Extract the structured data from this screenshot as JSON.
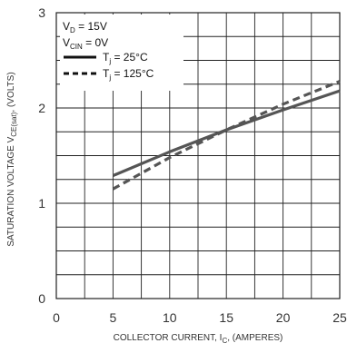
{
  "chart_data": {
    "type": "line",
    "xlabel": {
      "main": "COLLECTOR CURRENT, I",
      "sub": "C",
      "unit": ", (AMPERES)"
    },
    "ylabel": {
      "main": "SATURATION VOLTAGE V",
      "sub": "CE(sat)",
      "unit": ", (VOLTS)"
    },
    "xlim": [
      0,
      25
    ],
    "ylim": [
      0,
      3
    ],
    "xticks": [
      {
        "value": 0,
        "label": "0"
      },
      {
        "value": 5,
        "label": "5"
      },
      {
        "value": 10,
        "label": "10"
      },
      {
        "value": 15,
        "label": "15"
      },
      {
        "value": 20,
        "label": "20"
      },
      {
        "value": 25,
        "label": "25"
      }
    ],
    "yticks": [
      {
        "value": 0,
        "label": "0"
      },
      {
        "value": 1,
        "label": "1"
      },
      {
        "value": 2,
        "label": "2"
      },
      {
        "value": 3,
        "label": "3"
      }
    ],
    "grid": true,
    "x_minor_per_major": 2,
    "y_minor_per_major": 4,
    "conditions": [
      {
        "main": "V",
        "sub": "D",
        "rest": " = 15V"
      },
      {
        "main": "V",
        "sub": "CIN",
        "rest": " = 0V"
      }
    ],
    "series": [
      {
        "name_main": "T",
        "name_sub": "j",
        "name_rest": " = 25°C",
        "style": "solid",
        "color": "#555555",
        "x": [
          5,
          10,
          15,
          20,
          25
        ],
        "y": [
          1.29,
          1.54,
          1.77,
          1.98,
          2.18
        ]
      },
      {
        "name_main": "T",
        "name_sub": "j",
        "name_rest": " = 125°C",
        "style": "dashed",
        "color": "#555555",
        "x": [
          5,
          10,
          15,
          20,
          25
        ],
        "y": [
          1.15,
          1.48,
          1.77,
          2.04,
          2.28
        ]
      }
    ]
  }
}
